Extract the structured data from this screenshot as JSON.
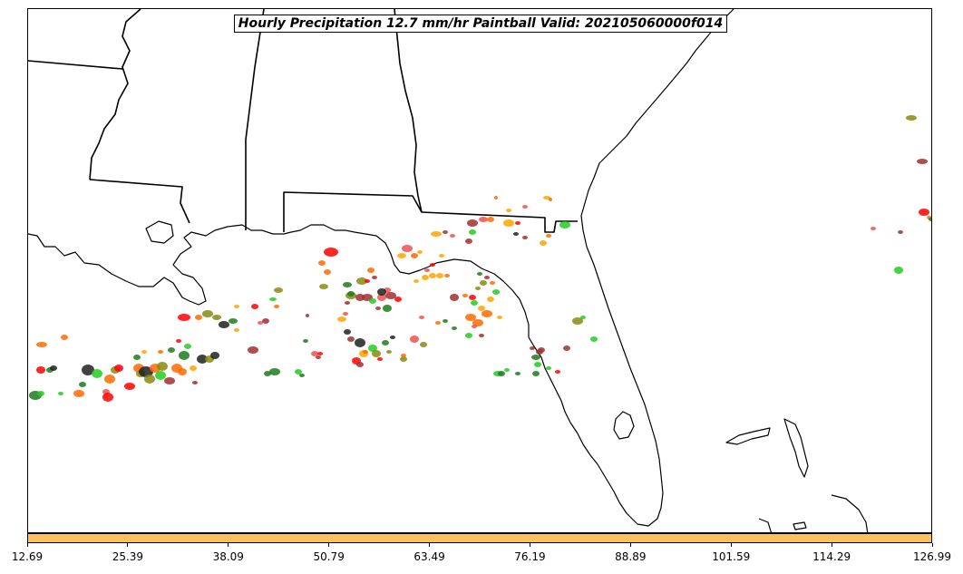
{
  "title": "Hourly Precipitation 12.7 mm/hr Paintball Valid: 202105060000f014",
  "colorbar": {
    "color": "#ffc05e"
  },
  "x_ticks": [
    "12.69",
    "25.39",
    "38.09",
    "50.79",
    "63.49",
    "76.19",
    "88.89",
    "101.59",
    "114.29",
    "126.99"
  ],
  "paintball_colors": [
    "#ff0000",
    "#ff6a00",
    "#ffa500",
    "#f05050",
    "#a03030",
    "#202020",
    "#1f7a1f",
    "#22cc22",
    "#8a8a10"
  ]
}
